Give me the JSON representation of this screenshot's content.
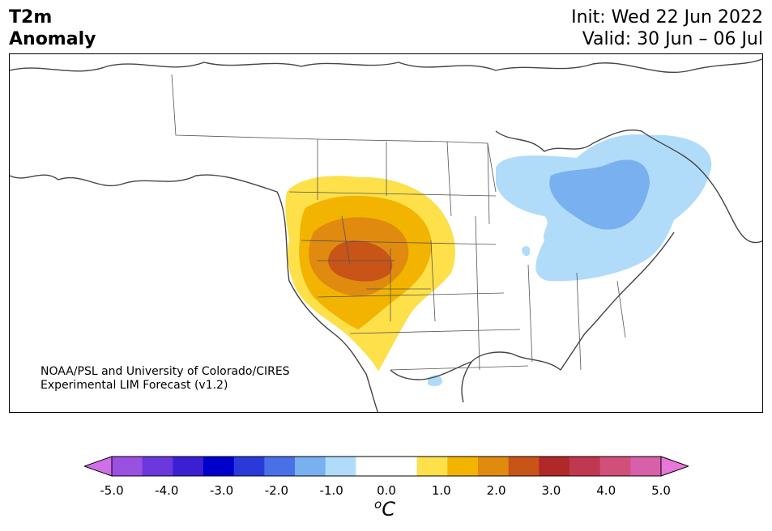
{
  "header": {
    "title_line1": "T2m",
    "title_line2": "Anomaly",
    "init": "Init: Wed 22 Jun 2022",
    "valid": "Valid: 30 Jun – 06 Jul"
  },
  "credit": {
    "line1": "NOAA/PSL and University of Colorado/CIRES",
    "line2": "Experimental LIM Forecast (v1.2)"
  },
  "colorbar": {
    "unit": "C",
    "unit_prefix": "o",
    "ticks": [
      "-5.0",
      "-4.0",
      "-3.0",
      "-2.0",
      "-1.0",
      "0.0",
      "1.0",
      "2.0",
      "3.0",
      "4.0",
      "5.0"
    ],
    "colors": [
      "#d070e8",
      "#9a50e0",
      "#6a38dc",
      "#3a20d0",
      "#0000cc",
      "#2a3ad8",
      "#4a70e8",
      "#78b0f0",
      "#b0dcfa",
      "#ffffff",
      "#ffffff",
      "#fde04a",
      "#f2b400",
      "#e08a10",
      "#c85418",
      "#b02828",
      "#c03850",
      "#d0507a",
      "#d860a8",
      "#e878d8"
    ]
  },
  "anomalies": [
    {
      "region": "Western US / Great Basin",
      "sign": "warm",
      "max_value": "2.5+"
    },
    {
      "region": "Great Lakes / Ontario / Quebec",
      "sign": "cool",
      "max_value": "-1.5"
    }
  ]
}
